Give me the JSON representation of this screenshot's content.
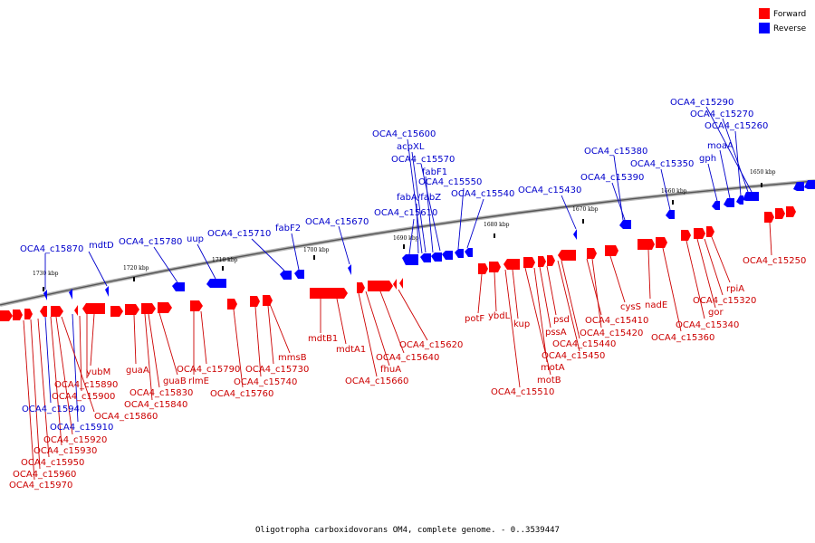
{
  "legend": [
    {
      "label": "Forward",
      "color": "#ff0000"
    },
    {
      "label": "Reverse",
      "color": "#0000ff"
    }
  ],
  "caption": "Oligotropha carboxidovorans OM4, complete genome. - 0..3539447",
  "scale_labels": [
    "1730 kbp",
    "1720 kbp",
    "1710 kbp",
    "1700 kbp",
    "1690 kbp",
    "1680 kbp",
    "1670 kbp",
    "1660 kbp",
    "1650 kbp"
  ],
  "reverse_labels": [
    "OCA4_c15870",
    "mdtD",
    "OCA4_c15780",
    "uup",
    "OCA4_c15710",
    "fabF2",
    "OCA4_c15670",
    "OCA4_c15610",
    "fabA/fabZ",
    "fabF1",
    "OCA4_c15570",
    "acpXL",
    "OCA4_c15600",
    "OCA4_c15550",
    "OCA4_c15540",
    "OCA4_c15430",
    "OCA4_c15390",
    "OCA4_c15380",
    "OCA4_c15350",
    "gph",
    "moaA",
    "OCA4_c15260",
    "OCA4_c15270",
    "OCA4_c15290",
    "OCA4_c15940",
    "OCA4_c15910"
  ],
  "forward_labels": [
    "yubM",
    "OCA4_c15890",
    "OCA4_c15900",
    "guaA",
    "OCA4_c15830",
    "guaB",
    "OCA4_c15840",
    "OCA4_c15860",
    "OCA4_c15920",
    "OCA4_c15930",
    "OCA4_c15950",
    "OCA4_c15960",
    "OCA4_c15970",
    "OCA4_c15790",
    "rlmE",
    "OCA4_c15730",
    "OCA4_c15740",
    "OCA4_c15760",
    "mmsB",
    "mdtB1",
    "mdtA1",
    "OCA4_c15620",
    "OCA4_c15640",
    "fhuA",
    "OCA4_c15660",
    "potF",
    "ybdL",
    "kup",
    "psd",
    "pssA",
    "motA",
    "motB",
    "OCA4_c15510",
    "OCA4_c15440",
    "OCA4_c15450",
    "OCA4_c15410",
    "OCA4_c15420",
    "cysS",
    "nadE",
    "OCA4_c15360",
    "OCA4_c15340",
    "gor",
    "OCA4_c15320",
    "rpiA",
    "OCA4_c15250"
  ]
}
